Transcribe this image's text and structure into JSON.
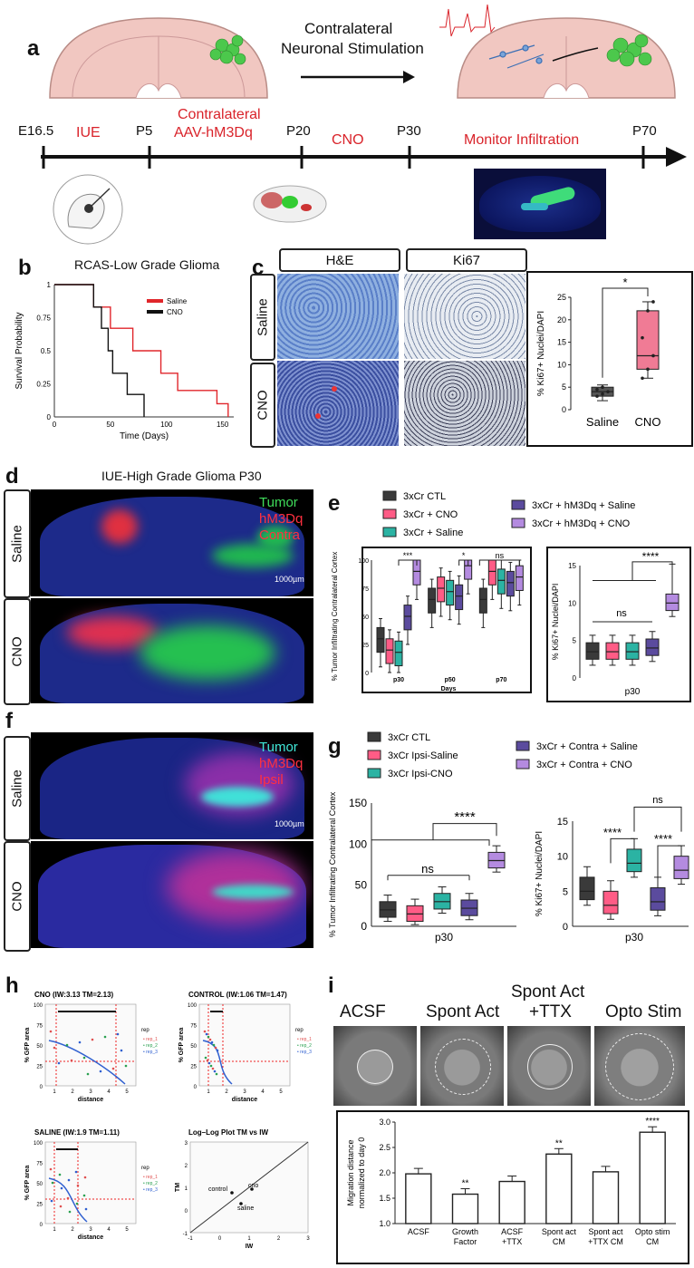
{
  "panel_labels": {
    "a": "a",
    "b": "b",
    "c": "c",
    "d": "d",
    "e": "e",
    "f": "f",
    "g": "g",
    "h": "h",
    "i": "i"
  },
  "panel_a": {
    "stimulation_title_line1": "Contralateral",
    "stimulation_title_line2": "Neuronal Stimulation",
    "timeline_points": [
      "E16.5",
      "P5",
      "P20",
      "P30",
      "P70"
    ],
    "timeline_phases": [
      "IUE",
      "Contralateral",
      "AAV-hM3Dq",
      "CNO",
      "Monitor Infiltration"
    ]
  },
  "panel_b": {
    "title": "RCAS-Low Grade Glioma"
  },
  "panel_c": {
    "col_he": "H&E",
    "col_ki67": "Ki67",
    "row_saline": "Saline",
    "row_cno": "CNO",
    "sig": "*"
  },
  "panel_d": {
    "title": "IUE-High Grade Glioma P30",
    "legend_tumor": "Tumor",
    "legend_hm3dq": "hM3Dq",
    "legend_contra": "Contra",
    "row_saline": "Saline",
    "row_cno": "CNO",
    "scale": "1000µm"
  },
  "panel_e": {
    "legend": [
      "3xCr CTL",
      "3xCr + CNO",
      "3xCr + Saline",
      "3xCr + hM3Dq + Saline",
      "3xCr + hM3Dq + CNO"
    ],
    "sig_left": [
      "***",
      "*",
      "ns"
    ],
    "sig_right": [
      "****",
      "ns"
    ]
  },
  "panel_f": {
    "legend_tumor": "Tumor",
    "legend_hm3dq": "hM3Dq",
    "legend_ipsi": "Ipsil",
    "row_saline": "Saline",
    "row_cno": "CNO",
    "scale": "1000µm"
  },
  "panel_g": {
    "legend": [
      "3xCr CTL",
      "3xCr Ipsi-Saline",
      "3xCr Ipsi-CNO",
      "3xCr + Contra + Saline",
      "3xCr + Contra + CNO"
    ],
    "sig_left": [
      "****",
      "ns"
    ],
    "sig_right": [
      "ns",
      "****",
      "****"
    ]
  },
  "panel_h": {
    "plot_titles": [
      "CNO (IW:3.13 TM=2.13)",
      "CONTROL (IW:1.06 TM=1.47)",
      "SALINE (IW:1.9 TM=1.11)",
      "Log–Log Plot TM vs IW"
    ],
    "ylabel": "% GFP area",
    "xlabel": "distance",
    "legend_title": "rep",
    "legend_items": [
      "rep_1",
      "rep_2",
      "rep_3"
    ],
    "loglog_xlabel": "IW",
    "loglog_ylabel": "TM",
    "loglog_points": [
      "control",
      "cno",
      "saline"
    ]
  },
  "panel_i": {
    "image_titles": [
      "ACSF",
      "Spont Act",
      "Spont Act",
      "+TTX",
      "Opto Stim"
    ],
    "sigs": [
      "**",
      "**",
      "****"
    ]
  },
  "chart_data": [
    {
      "id": "b",
      "type": "line",
      "title": "RCAS-Low Grade Glioma",
      "xlabel": "Time (Days)",
      "ylabel": "Survival Probability",
      "xlim": [
        0,
        160
      ],
      "ylim": [
        0,
        1.0
      ],
      "xticks": [
        0,
        50,
        100,
        150
      ],
      "yticks": [
        0,
        0.25,
        0.5,
        0.75,
        1.0
      ],
      "series": [
        {
          "name": "Saline",
          "color": "#e0262b",
          "x": [
            0,
            35,
            35,
            50,
            50,
            70,
            70,
            95,
            95,
            110,
            110,
            145,
            145,
            155,
            155
          ],
          "y": [
            1.0,
            1.0,
            0.83,
            0.83,
            0.67,
            0.67,
            0.5,
            0.5,
            0.33,
            0.33,
            0.2,
            0.2,
            0.1,
            0.1,
            0.0
          ]
        },
        {
          "name": "CNO",
          "color": "#111111",
          "x": [
            0,
            35,
            35,
            42,
            42,
            48,
            48,
            52,
            52,
            65,
            65,
            80,
            80
          ],
          "y": [
            1.0,
            1.0,
            0.83,
            0.83,
            0.67,
            0.67,
            0.5,
            0.5,
            0.33,
            0.33,
            0.17,
            0.17,
            0.0
          ]
        }
      ]
    },
    {
      "id": "c",
      "type": "bar",
      "ylabel": "% Ki67+ Nuclei/DAPI",
      "categories": [
        "Saline",
        "CNO"
      ],
      "ylim": [
        0,
        25
      ],
      "yticks": [
        0,
        5,
        10,
        15,
        20,
        25
      ],
      "box": [
        {
          "name": "Saline",
          "min": 2,
          "q1": 3,
          "median": 4,
          "q3": 5,
          "max": 5.5,
          "color": "#444444"
        },
        {
          "name": "CNO",
          "min": 7,
          "q1": 9,
          "median": 12,
          "q3": 22,
          "max": 24,
          "color": "#e24b6a"
        }
      ],
      "points": [
        [
          3,
          3.5,
          4,
          4.5,
          5
        ],
        [
          7,
          9,
          12,
          16,
          22,
          24
        ]
      ]
    },
    {
      "id": "e-left",
      "type": "bar",
      "xlabel": "Days",
      "ylabel": "% Tumor Infiltrating Contralateral Cortex",
      "categories": [
        "p30",
        "p50",
        "p70"
      ],
      "ylim": [
        0,
        100
      ],
      "yticks": [
        0,
        25,
        50,
        75,
        100
      ],
      "series": [
        {
          "name": "3xCr CTL",
          "medians": [
            30,
            65,
            65
          ]
        },
        {
          "name": "3xCr + CNO",
          "medians": [
            20,
            75,
            90
          ]
        },
        {
          "name": "3xCr + Saline",
          "medians": [
            18,
            72,
            82
          ]
        },
        {
          "name": "3xCr + hM3Dq + Saline",
          "medians": [
            50,
            68,
            80
          ]
        },
        {
          "name": "3xCr + hM3Dq + CNO",
          "medians": [
            90,
            95,
            85
          ]
        }
      ]
    },
    {
      "id": "e-right",
      "type": "bar",
      "ylabel": "% Ki67+ Nuclei/DAPI",
      "categories": [
        "p30"
      ],
      "ylim": [
        0,
        15
      ],
      "yticks": [
        0,
        5,
        10,
        15
      ],
      "series": [
        {
          "name": "3xCr CTL",
          "values": [
            3.5
          ]
        },
        {
          "name": "3xCr + CNO",
          "values": [
            3.5
          ]
        },
        {
          "name": "3xCr + Saline",
          "values": [
            3.5
          ]
        },
        {
          "name": "3xCr + hM3Dq + Saline",
          "values": [
            4
          ]
        },
        {
          "name": "3xCr + hM3Dq + CNO",
          "values": [
            10
          ]
        }
      ]
    },
    {
      "id": "g-left",
      "type": "bar",
      "ylabel": "% Tumor Infiltrating Contralateral Cortex",
      "categories": [
        "p30"
      ],
      "ylim": [
        0,
        150
      ],
      "yticks": [
        0,
        50,
        100,
        150
      ],
      "series": [
        {
          "name": "3xCr CTL",
          "values": [
            20
          ]
        },
        {
          "name": "3xCr Ipsi-Saline",
          "values": [
            15
          ]
        },
        {
          "name": "3xCr Ipsi-CNO",
          "values": [
            30
          ]
        },
        {
          "name": "3xCr + Contra + Saline",
          "values": [
            22
          ]
        },
        {
          "name": "3xCr + Contra + CNO",
          "values": [
            80
          ]
        }
      ]
    },
    {
      "id": "g-right",
      "type": "bar",
      "ylabel": "% Ki67+ Nuclei/DAPI",
      "categories": [
        "p30"
      ],
      "ylim": [
        0,
        15
      ],
      "yticks": [
        0,
        5,
        10,
        15
      ],
      "series": [
        {
          "name": "3xCr CTL",
          "values": [
            5
          ]
        },
        {
          "name": "3xCr Ipsi-Saline",
          "values": [
            3
          ]
        },
        {
          "name": "3xCr Ipsi-CNO",
          "values": [
            9
          ]
        },
        {
          "name": "3xCr + Contra + Saline",
          "values": [
            3.5
          ]
        },
        {
          "name": "3xCr + Contra + CNO",
          "values": [
            8
          ]
        }
      ]
    },
    {
      "id": "i",
      "type": "bar",
      "ylabel": "Migration distance normalized to day 0",
      "categories": [
        "ACSF",
        "Growth Factor",
        "ACSF +TTX",
        "Spont act CM",
        "Spont act +TTX CM",
        "Opto stim CM"
      ],
      "values": [
        1.98,
        1.58,
        1.83,
        2.37,
        2.02,
        2.8
      ],
      "ylim": [
        1.0,
        3.0
      ],
      "yticks": [
        1.0,
        1.5,
        2.0,
        2.5,
        3.0
      ]
    }
  ]
}
